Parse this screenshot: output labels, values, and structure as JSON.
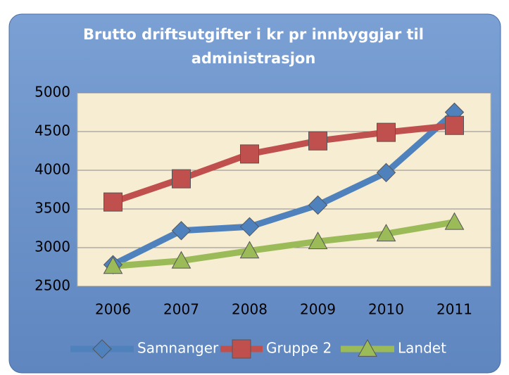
{
  "chart_data": {
    "type": "line",
    "title": "Brutto driftsutgifter i kr pr innbyggjar til administrasjon",
    "categories": [
      "2006",
      "2007",
      "2008",
      "2009",
      "2010",
      "2011"
    ],
    "series": [
      {
        "name": "Samnanger",
        "color": "#4f81bd",
        "marker": "diamond",
        "values": [
          2780,
          3220,
          3270,
          3550,
          3970,
          4750
        ]
      },
      {
        "name": "Gruppe 2",
        "color": "#c0504d",
        "marker": "square",
        "values": [
          3590,
          3890,
          4210,
          4380,
          4490,
          4580
        ]
      },
      {
        "name": "Landet",
        "color": "#9bbb59",
        "marker": "triangle",
        "values": [
          2760,
          2830,
          2960,
          3080,
          3180,
          3330
        ]
      }
    ],
    "ylim": [
      2500,
      5000
    ],
    "yticks": [
      2500,
      3000,
      3500,
      4000,
      4500,
      5000
    ],
    "grid": true,
    "legend": "bottom"
  }
}
